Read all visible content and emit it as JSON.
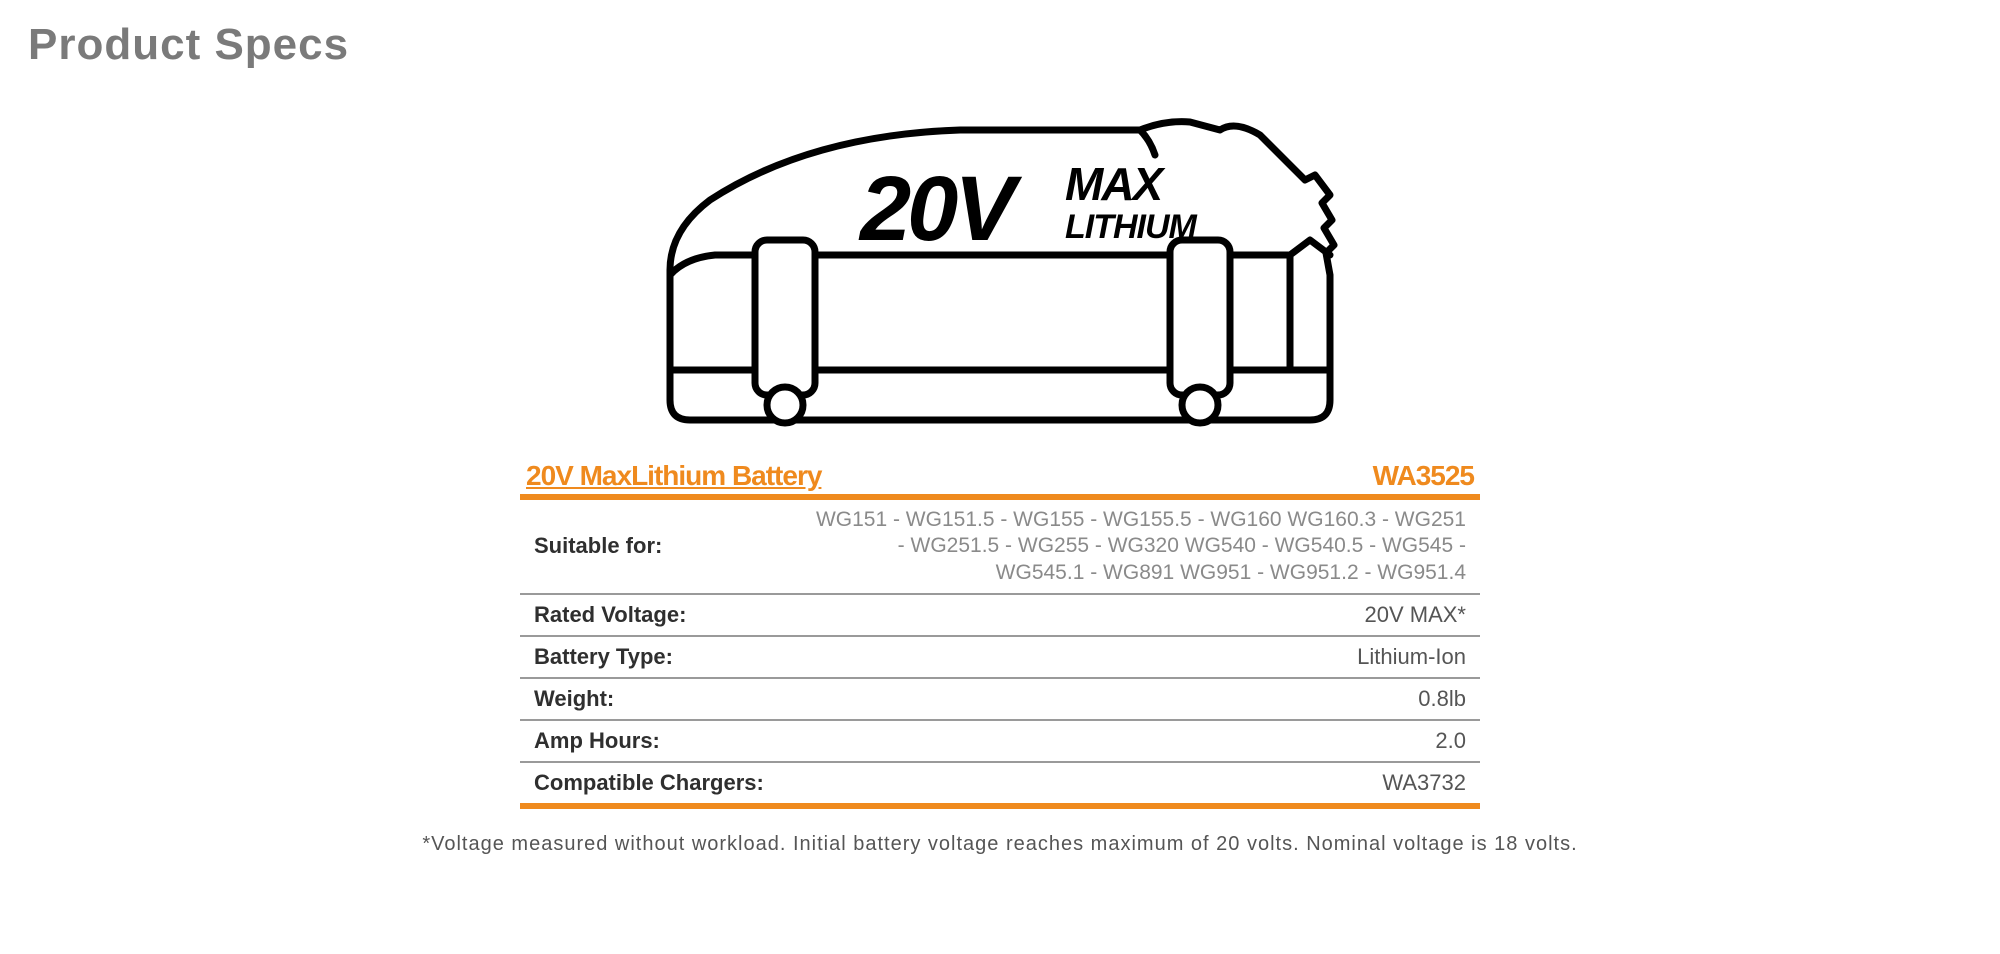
{
  "colors": {
    "title": "#7a7a7a",
    "orange": "#ef8a1e",
    "border": "#9a9a9a",
    "label_text": "#2f2f2f",
    "value_text": "#555555",
    "suitable_text": "#8a8a8a",
    "footnote": "#555555",
    "diagram_stroke": "#000000",
    "diagram_fill": "#ffffff"
  },
  "page_title": "Product Specs",
  "diagram": {
    "label_main": "20V",
    "label_top": "MAX",
    "label_bottom": "LITHIUM"
  },
  "header": {
    "left": "20V MaxLithium Battery",
    "right": "WA3525"
  },
  "rows": [
    {
      "label": "Suitable for:",
      "value": "WG151 - WG151.5 - WG155 - WG155.5 - WG160 WG160.3 - WG251 - WG251.5 - WG255 - WG320 WG540 - WG540.5 - WG545 - WG545.1 - WG891 WG951 - WG951.2 - WG951.4",
      "suitable": true
    },
    {
      "label": "Rated Voltage:",
      "value": "20V MAX*",
      "suitable": false
    },
    {
      "label": "Battery Type:",
      "value": "Lithium-Ion",
      "suitable": false
    },
    {
      "label": "Weight:",
      "value": "0.8lb",
      "suitable": false
    },
    {
      "label": "Amp Hours:",
      "value": "2.0",
      "suitable": false
    },
    {
      "label": "Compatible Chargers:",
      "value": "WA3732",
      "suitable": false
    }
  ],
  "footnote": "*Voltage measured without workload. Initial battery voltage reaches maximum of 20 volts. Nominal voltage is 18 volts."
}
